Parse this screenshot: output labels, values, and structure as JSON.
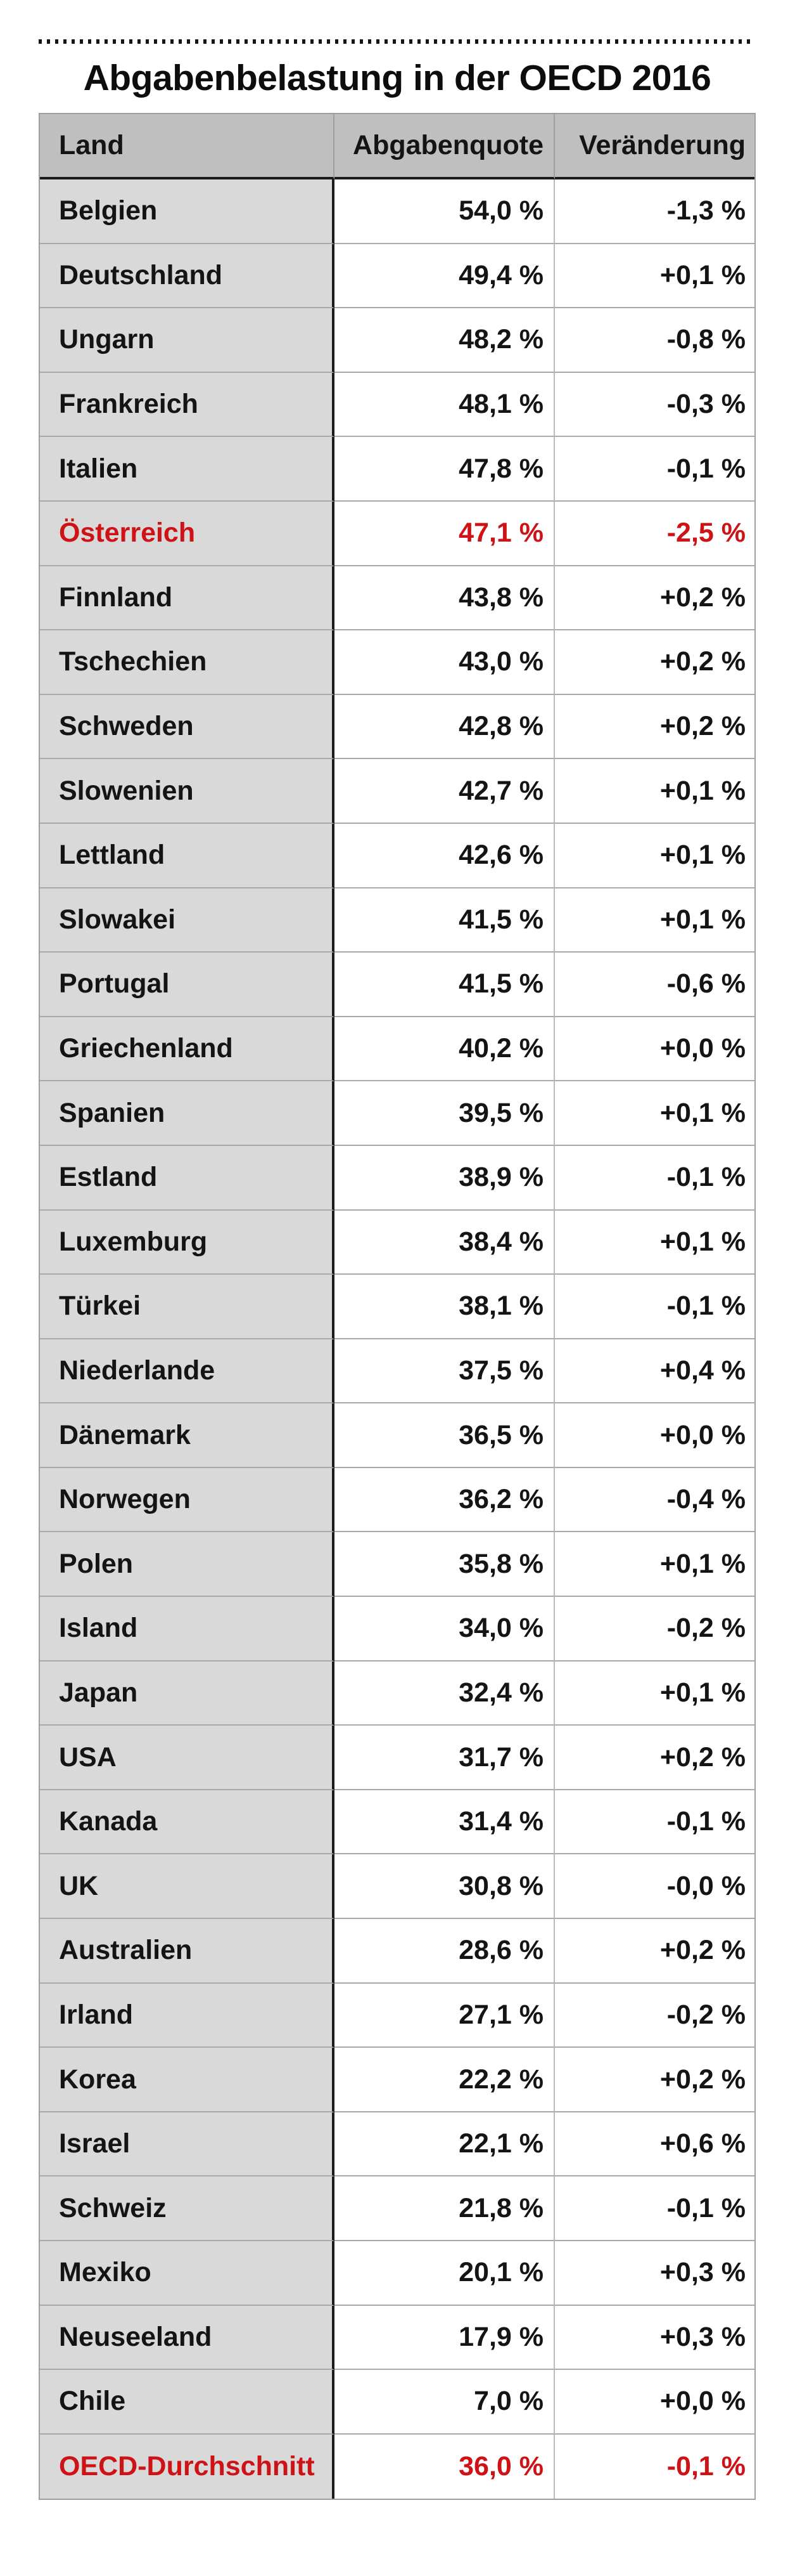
{
  "page": {
    "title": "Abgabenbelastung in der OECD 2016"
  },
  "colors": {
    "highlight_red": "#ce1317",
    "header_background": "#bfbfbf",
    "country_column_background": "#d9d9d9",
    "border_dark": "#1b1b1b",
    "border_light": "#a9a9a9",
    "text": "#141414"
  },
  "table": {
    "headers": {
      "land": "Land",
      "quote": "Abgabenquote",
      "change": "Veränderung"
    }
  },
  "chart_data": {
    "type": "table",
    "title": "Abgabenbelastung in der OECD 2016",
    "columns": [
      "Land",
      "Abgabenquote",
      "Veränderung"
    ],
    "highlighted_rows": [
      "Österreich",
      "OECD-Durchschnitt"
    ],
    "rows": [
      {
        "land": "Belgien",
        "quote": "54,0 %",
        "change": "-1,3 %",
        "highlight": false
      },
      {
        "land": "Deutschland",
        "quote": "49,4 %",
        "change": "+0,1 %",
        "highlight": false
      },
      {
        "land": "Ungarn",
        "quote": "48,2 %",
        "change": "-0,8 %",
        "highlight": false
      },
      {
        "land": "Frankreich",
        "quote": "48,1 %",
        "change": "-0,3 %",
        "highlight": false
      },
      {
        "land": "Italien",
        "quote": "47,8 %",
        "change": "-0,1 %",
        "highlight": false
      },
      {
        "land": "Österreich",
        "quote": "47,1 %",
        "change": "-2,5 %",
        "highlight": true
      },
      {
        "land": "Finnland",
        "quote": "43,8 %",
        "change": "+0,2 %",
        "highlight": false
      },
      {
        "land": "Tschechien",
        "quote": "43,0 %",
        "change": "+0,2 %",
        "highlight": false
      },
      {
        "land": "Schweden",
        "quote": "42,8 %",
        "change": "+0,2 %",
        "highlight": false
      },
      {
        "land": "Slowenien",
        "quote": "42,7 %",
        "change": "+0,1 %",
        "highlight": false
      },
      {
        "land": "Lettland",
        "quote": "42,6 %",
        "change": "+0,1 %",
        "highlight": false
      },
      {
        "land": "Slowakei",
        "quote": "41,5 %",
        "change": "+0,1 %",
        "highlight": false
      },
      {
        "land": "Portugal",
        "quote": "41,5 %",
        "change": "-0,6 %",
        "highlight": false
      },
      {
        "land": "Griechenland",
        "quote": "40,2 %",
        "change": "+0,0 %",
        "highlight": false
      },
      {
        "land": "Spanien",
        "quote": "39,5 %",
        "change": "+0,1 %",
        "highlight": false
      },
      {
        "land": "Estland",
        "quote": "38,9 %",
        "change": "-0,1 %",
        "highlight": false
      },
      {
        "land": "Luxemburg",
        "quote": "38,4 %",
        "change": "+0,1 %",
        "highlight": false
      },
      {
        "land": "Türkei",
        "quote": "38,1 %",
        "change": "-0,1 %",
        "highlight": false
      },
      {
        "land": "Niederlande",
        "quote": "37,5 %",
        "change": "+0,4 %",
        "highlight": false
      },
      {
        "land": "Dänemark",
        "quote": "36,5 %",
        "change": "+0,0 %",
        "highlight": false
      },
      {
        "land": "Norwegen",
        "quote": "36,2 %",
        "change": "-0,4 %",
        "highlight": false
      },
      {
        "land": "Polen",
        "quote": "35,8 %",
        "change": "+0,1 %",
        "highlight": false
      },
      {
        "land": "Island",
        "quote": "34,0 %",
        "change": "-0,2 %",
        "highlight": false
      },
      {
        "land": "Japan",
        "quote": "32,4 %",
        "change": "+0,1 %",
        "highlight": false
      },
      {
        "land": "USA",
        "quote": "31,7 %",
        "change": "+0,2 %",
        "highlight": false
      },
      {
        "land": "Kanada",
        "quote": "31,4 %",
        "change": "-0,1 %",
        "highlight": false
      },
      {
        "land": "UK",
        "quote": "30,8 %",
        "change": "-0,0 %",
        "highlight": false
      },
      {
        "land": "Australien",
        "quote": "28,6 %",
        "change": "+0,2 %",
        "highlight": false
      },
      {
        "land": "Irland",
        "quote": "27,1 %",
        "change": "-0,2 %",
        "highlight": false
      },
      {
        "land": "Korea",
        "quote": "22,2 %",
        "change": "+0,2 %",
        "highlight": false
      },
      {
        "land": "Israel",
        "quote": "22,1 %",
        "change": "+0,6 %",
        "highlight": false
      },
      {
        "land": "Schweiz",
        "quote": "21,8 %",
        "change": "-0,1 %",
        "highlight": false
      },
      {
        "land": "Mexiko",
        "quote": "20,1 %",
        "change": "+0,3 %",
        "highlight": false
      },
      {
        "land": "Neuseeland",
        "quote": "17,9 %",
        "change": "+0,3 %",
        "highlight": false
      },
      {
        "land": "Chile",
        "quote": "7,0 %",
        "change": "+0,0 %",
        "highlight": false
      },
      {
        "land": "OECD-Durchschnitt",
        "quote": "36,0 %",
        "change": "-0,1 %",
        "highlight": true
      }
    ]
  }
}
